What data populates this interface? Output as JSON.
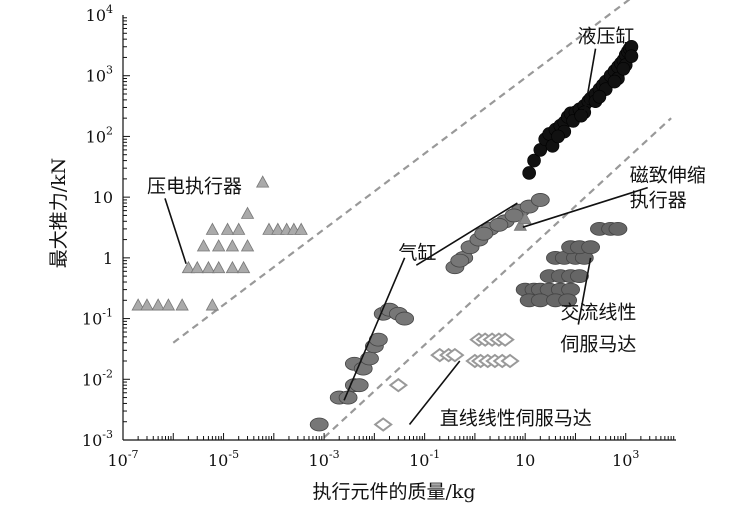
{
  "chart_data": {
    "type": "scatter",
    "xlabel": "执行元件的质量/kg",
    "ylabel": "最大推力/kN",
    "xscale": "log",
    "yscale": "log",
    "xlim": [
      1e-07,
      10000
    ],
    "ylim": [
      0.001,
      10000
    ],
    "x_ticks": [
      {
        "value": 1e-07,
        "base": "10",
        "exp": "-7"
      },
      {
        "value": 1e-05,
        "base": "10",
        "exp": "-5"
      },
      {
        "value": 0.001,
        "base": "10",
        "exp": "-3"
      },
      {
        "value": 0.1,
        "base": "10",
        "exp": "-1"
      },
      {
        "value": 10,
        "base": "10",
        "exp": ""
      },
      {
        "value": 1000,
        "base": "10",
        "exp": "3"
      }
    ],
    "y_ticks": [
      {
        "value": 0.001,
        "base": "10",
        "exp": "-3"
      },
      {
        "value": 0.01,
        "base": "10",
        "exp": "-2"
      },
      {
        "value": 0.1,
        "base": "10",
        "exp": "-1"
      },
      {
        "value": 1,
        "base": "1",
        "exp": ""
      },
      {
        "value": 10,
        "base": "10",
        "exp": ""
      },
      {
        "value": 100,
        "base": "10",
        "exp": "2"
      },
      {
        "value": 1000,
        "base": "10",
        "exp": "3"
      },
      {
        "value": 10000,
        "base": "10",
        "exp": "4"
      }
    ],
    "grid": false,
    "legend": "none",
    "trend_lines": [
      {
        "x": [
          1e-06,
          2000
        ],
        "y": [
          0.04,
          25000
        ]
      },
      {
        "x": [
          0.001,
          8000
        ],
        "y": [
          0.0011,
          200
        ]
      }
    ],
    "series": [
      {
        "name": "液压缸",
        "marker": "circle",
        "color": "#111111",
        "points": [
          [
            12,
            25
          ],
          [
            15,
            40
          ],
          [
            20,
            60
          ],
          [
            25,
            90
          ],
          [
            30,
            110
          ],
          [
            40,
            130
          ],
          [
            50,
            150
          ],
          [
            60,
            170
          ],
          [
            70,
            210
          ],
          [
            80,
            240
          ],
          [
            100,
            250
          ],
          [
            120,
            280
          ],
          [
            150,
            320
          ],
          [
            180,
            380
          ],
          [
            200,
            420
          ],
          [
            250,
            500
          ],
          [
            300,
            600
          ],
          [
            350,
            700
          ],
          [
            400,
            800
          ],
          [
            500,
            1000
          ],
          [
            600,
            1200
          ],
          [
            700,
            1400
          ],
          [
            800,
            1600
          ],
          [
            900,
            1800
          ],
          [
            1000,
            2200
          ],
          [
            1100,
            2500
          ],
          [
            1200,
            2800
          ],
          [
            1300,
            3000
          ],
          [
            60,
            120
          ],
          [
            90,
            180
          ],
          [
            150,
            250
          ],
          [
            250,
            380
          ],
          [
            400,
            600
          ],
          [
            700,
            900
          ],
          [
            1000,
            1500
          ],
          [
            35,
            70
          ],
          [
            45,
            100
          ],
          [
            130,
            220
          ],
          [
            300,
            450
          ],
          [
            600,
            800
          ],
          [
            900,
            1300
          ],
          [
            1300,
            2100
          ]
        ]
      },
      {
        "name": "气缸",
        "marker": "ellipse",
        "color": "#777777",
        "points": [
          [
            0.0008,
            0.0018
          ],
          [
            0.002,
            0.005
          ],
          [
            0.003,
            0.005
          ],
          [
            0.004,
            0.008
          ],
          [
            0.005,
            0.008
          ],
          [
            0.004,
            0.018
          ],
          [
            0.006,
            0.015
          ],
          [
            0.008,
            0.022
          ],
          [
            0.01,
            0.035
          ],
          [
            0.012,
            0.045
          ],
          [
            0.015,
            0.12
          ],
          [
            0.02,
            0.14
          ],
          [
            0.03,
            0.12
          ],
          [
            0.04,
            0.1
          ],
          [
            0.4,
            0.7
          ],
          [
            0.6,
            1.0
          ],
          [
            0.8,
            1.5
          ],
          [
            1.2,
            2.0
          ],
          [
            2,
            3.0
          ],
          [
            4,
            4.0
          ],
          [
            8,
            6.0
          ],
          [
            12,
            7.0
          ],
          [
            20,
            9.0
          ],
          [
            0.5,
            0.9
          ],
          [
            1.5,
            2.5
          ],
          [
            3,
            3.5
          ],
          [
            6,
            5.0
          ]
        ]
      },
      {
        "name": "压电执行器",
        "marker": "triangle",
        "color": "#aaaaaa",
        "points": [
          [
            2e-07,
            0.17
          ],
          [
            3e-07,
            0.17
          ],
          [
            5e-07,
            0.17
          ],
          [
            8e-07,
            0.17
          ],
          [
            1.5e-06,
            0.17
          ],
          [
            6e-06,
            0.17
          ],
          [
            2e-06,
            0.7
          ],
          [
            3e-06,
            0.7
          ],
          [
            5e-06,
            0.7
          ],
          [
            8e-06,
            0.7
          ],
          [
            1.5e-05,
            0.7
          ],
          [
            2.5e-05,
            0.7
          ],
          [
            4e-06,
            1.6
          ],
          [
            8e-06,
            1.6
          ],
          [
            1.5e-05,
            1.6
          ],
          [
            3e-05,
            1.6
          ],
          [
            6e-06,
            3.0
          ],
          [
            1.2e-05,
            3.0
          ],
          [
            2e-05,
            3.0
          ],
          [
            3e-05,
            5.5
          ],
          [
            6e-05,
            18
          ],
          [
            8e-05,
            3.0
          ],
          [
            0.00012,
            3.0
          ],
          [
            0.00018,
            3.0
          ],
          [
            0.00025,
            3.0
          ],
          [
            0.00035,
            3.0
          ]
        ]
      },
      {
        "name": "交流线性伺服马达",
        "marker": "ellipse",
        "color": "#666666",
        "points": [
          [
            10,
            0.3
          ],
          [
            15,
            0.3
          ],
          [
            20,
            0.3
          ],
          [
            30,
            0.3
          ],
          [
            50,
            0.3
          ],
          [
            80,
            0.3
          ],
          [
            12,
            0.2
          ],
          [
            20,
            0.2
          ],
          [
            40,
            0.2
          ],
          [
            70,
            0.2
          ],
          [
            30,
            0.5
          ],
          [
            50,
            0.5
          ],
          [
            80,
            0.5
          ],
          [
            120,
            0.5
          ],
          [
            40,
            1.0
          ],
          [
            60,
            1.0
          ],
          [
            100,
            1.0
          ],
          [
            150,
            1.0
          ],
          [
            80,
            1.5
          ],
          [
            120,
            1.5
          ],
          [
            200,
            1.5
          ],
          [
            300,
            3.0
          ],
          [
            500,
            3.0
          ],
          [
            700,
            3.0
          ]
        ]
      },
      {
        "name": "直线线性伺服马达",
        "marker": "diamond",
        "color": "#999999",
        "points": [
          [
            0.015,
            0.0018
          ],
          [
            0.03,
            0.008
          ],
          [
            0.2,
            0.025
          ],
          [
            0.3,
            0.025
          ],
          [
            0.4,
            0.025
          ],
          [
            1,
            0.02
          ],
          [
            1.3,
            0.02
          ],
          [
            1.8,
            0.02
          ],
          [
            2.5,
            0.02
          ],
          [
            3.5,
            0.02
          ],
          [
            5,
            0.02
          ],
          [
            1.2,
            0.045
          ],
          [
            1.6,
            0.045
          ],
          [
            2.2,
            0.045
          ],
          [
            3,
            0.045
          ],
          [
            4,
            0.045
          ]
        ]
      },
      {
        "name": "磁致伸缩执行器",
        "marker": "triangle",
        "color": "#888888",
        "points": [
          [
            8,
            3.5
          ],
          [
            10,
            4.5
          ]
        ]
      }
    ],
    "annotations": [
      {
        "text": "液压缸",
        "text_x": 110,
        "text_y": 3500,
        "to_x": 150,
        "to_y": 240
      },
      {
        "text": "磁致伸缩",
        "text_x": 1200,
        "text_y": 18,
        "to_x": 9,
        "to_y": 3.2
      },
      {
        "text": "执行器",
        "text_x": 1200,
        "text_y": 7,
        "to_x": null,
        "to_y": null
      },
      {
        "text": "压电执行器",
        "text_x": 3e-07,
        "text_y": 12,
        "to_x": 1.8e-06,
        "to_y": 0.8
      },
      {
        "text": "气缸",
        "text_x": 0.03,
        "text_y": 0.95,
        "to_x": 7,
        "to_y": 8
      },
      {
        "text": "",
        "text_x": null,
        "text_y": null,
        "to_x": 0.0025,
        "to_y": 0.0045,
        "from_x": 0.04,
        "from_y": 1.0
      },
      {
        "text": "交流线性",
        "text_x": 50,
        "text_y": 0.1,
        "to_x": 200,
        "to_y": 1.0
      },
      {
        "text": "伺服马达",
        "text_x": 50,
        "text_y": 0.03,
        "to_x": null,
        "to_y": null
      },
      {
        "text": "直线线性伺服马达",
        "text_x": 0.2,
        "text_y": 0.0018,
        "to_x": 0.5,
        "to_y": 0.02,
        "from_x": 0.05,
        "from_y": 0.0018
      }
    ]
  }
}
